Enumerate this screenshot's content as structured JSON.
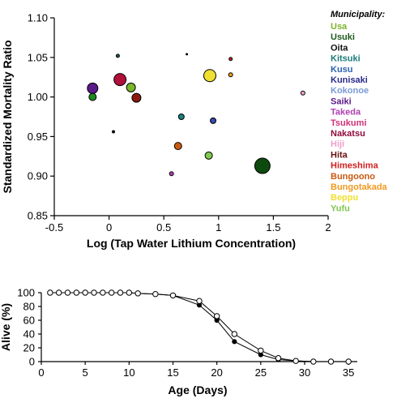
{
  "chart_data": [
    {
      "type": "scatter",
      "xlabel": "Log (Tap Water Lithium Concentration)",
      "ylabel": "Standardized Mortality Ratio",
      "xlim": [
        -0.5,
        2
      ],
      "ylim": [
        0.85,
        1.1
      ],
      "xticks": [
        "-0.5",
        "0",
        "0.5",
        "1",
        "1.5",
        "2"
      ],
      "yticks": [
        "0.85",
        "0.90",
        "0.95",
        "1.00",
        "1.05",
        "1.10"
      ],
      "xtick_values": [
        -0.5,
        0,
        0.5,
        1,
        1.5,
        2
      ],
      "ytick_values": [
        0.85,
        0.9,
        0.95,
        1.0,
        1.05,
        1.1
      ],
      "legend_title": "Municipality:",
      "legend_position": "right",
      "legend": [
        {
          "name": "Usa",
          "color": "#7ab52a"
        },
        {
          "name": "Usuki",
          "color": "#1e5a1e"
        },
        {
          "name": "Oita",
          "color": "#111111"
        },
        {
          "name": "Kitsuki",
          "color": "#1a7a7a"
        },
        {
          "name": "Kusu",
          "color": "#2a5fb0"
        },
        {
          "name": "Kunisaki",
          "color": "#2a2a8a"
        },
        {
          "name": "Kokonoe",
          "color": "#7a9ad6"
        },
        {
          "name": "Saiki",
          "color": "#5a1a8a"
        },
        {
          "name": "Takeda",
          "color": "#b040b0"
        },
        {
          "name": "Tsukumi",
          "color": "#d0307a"
        },
        {
          "name": "Nakatsu",
          "color": "#900a3a"
        },
        {
          "name": "Hiji",
          "color": "#f0a0c8"
        },
        {
          "name": "Hita",
          "color": "#6a1010"
        },
        {
          "name": "Himeshima",
          "color": "#d02020"
        },
        {
          "name": "Bungoono",
          "color": "#c85a10"
        },
        {
          "name": "Bungotakada",
          "color": "#f09a20"
        },
        {
          "name": "Beppu",
          "color": "#f0e030"
        },
        {
          "name": "Yufu",
          "color": "#80c850"
        }
      ],
      "points": [
        {
          "x": -0.15,
          "y": 1.011,
          "color": "#5a1a8a",
          "size": 6.5
        },
        {
          "x": -0.15,
          "y": 1.0,
          "color": "#1e8a1e",
          "size": 4.5
        },
        {
          "x": 0.1,
          "y": 1.022,
          "color": "#b0103a",
          "size": 7.5
        },
        {
          "x": 0.2,
          "y": 1.012,
          "color": "#7ab52a",
          "size": 5.5
        },
        {
          "x": 0.25,
          "y": 0.999,
          "color": "#8a1a10",
          "size": 5.5
        },
        {
          "x": 0.08,
          "y": 1.052,
          "color": "#1a5a5a",
          "size": 2
        },
        {
          "x": 0.04,
          "y": 0.956,
          "color": "#111111",
          "size": 1.5
        },
        {
          "x": 0.66,
          "y": 0.975,
          "color": "#1a8080",
          "size": 3.5
        },
        {
          "x": 0.63,
          "y": 0.938,
          "color": "#c85a10",
          "size": 4.5
        },
        {
          "x": 0.57,
          "y": 0.903,
          "color": "#b040b0",
          "size": 2.5
        },
        {
          "x": 0.71,
          "y": 1.054,
          "color": "#111111",
          "size": 1
        },
        {
          "x": 0.92,
          "y": 1.027,
          "color": "#f0e030",
          "size": 7.5
        },
        {
          "x": 0.91,
          "y": 0.926,
          "color": "#80c850",
          "size": 4.5
        },
        {
          "x": 0.95,
          "y": 0.97,
          "color": "#3a4ab0",
          "size": 3.5
        },
        {
          "x": 1.11,
          "y": 1.048,
          "color": "#d02020",
          "size": 2
        },
        {
          "x": 1.11,
          "y": 1.028,
          "color": "#f09a20",
          "size": 2.5
        },
        {
          "x": 1.4,
          "y": 0.913,
          "color": "#0e4a0e",
          "size": 9.5
        },
        {
          "x": 1.77,
          "y": 1.005,
          "color": "#f0a0c8",
          "size": 2.5
        }
      ]
    },
    {
      "type": "line",
      "xlabel": "Age (Days)",
      "ylabel": "Alive (%)",
      "xlim": [
        0,
        36
      ],
      "ylim": [
        0,
        100
      ],
      "xticks": [
        "0",
        "5",
        "10",
        "15",
        "20",
        "25",
        "30",
        "35"
      ],
      "yticks": [
        "0",
        "20",
        "40",
        "60",
        "80",
        "100"
      ],
      "xtick_values": [
        0,
        5,
        10,
        15,
        20,
        25,
        30,
        35
      ],
      "ytick_values": [
        0,
        20,
        40,
        60,
        80,
        100
      ],
      "series": [
        {
          "marker": "filled",
          "color": "#000000",
          "x": [
            1,
            2,
            3,
            4,
            5,
            6,
            7,
            8,
            9,
            10,
            11,
            13,
            15,
            18,
            20,
            22,
            25,
            27,
            29,
            31,
            33,
            35
          ],
          "y": [
            100,
            100,
            100,
            100,
            100,
            100,
            100,
            100,
            100,
            100,
            99,
            98,
            96,
            82,
            60,
            29,
            10,
            3,
            1,
            0,
            0,
            0
          ]
        },
        {
          "marker": "open",
          "color": "#000000",
          "x": [
            1,
            2,
            3,
            4,
            5,
            6,
            7,
            8,
            9,
            10,
            11,
            13,
            15,
            18,
            20,
            22,
            25,
            27,
            29,
            31,
            33,
            35
          ],
          "y": [
            100,
            100,
            100,
            100,
            100,
            100,
            100,
            100,
            100,
            100,
            99,
            98,
            96,
            88,
            66,
            40,
            16,
            5,
            1,
            0,
            0,
            0
          ]
        }
      ]
    }
  ]
}
